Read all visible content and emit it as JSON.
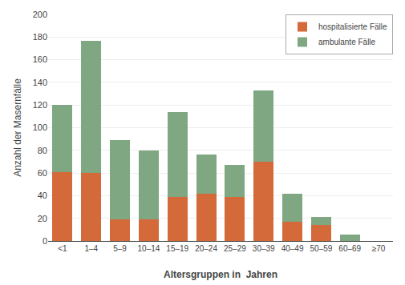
{
  "chart_data": {
    "type": "bar",
    "stacked": true,
    "categories": [
      "<1",
      "1–4",
      "5–9",
      "10–14",
      "15–19",
      "20–24",
      "25–29",
      "30–39",
      "40–49",
      "50–59",
      "60–69",
      "≥70"
    ],
    "series": [
      {
        "name": "hospitalisierte Fälle",
        "color": "#d4693a",
        "values": [
          61,
          60,
          19,
          19,
          39,
          42,
          39,
          70,
          17,
          14,
          0,
          0
        ]
      },
      {
        "name": "ambulante Fälle",
        "color": "#7fa882",
        "values": [
          59,
          117,
          70,
          61,
          75,
          34,
          28,
          63,
          25,
          7,
          6,
          0
        ]
      }
    ],
    "xlabel": "Altersgruppen in  Jahren",
    "ylabel": "Anzahl der Masernfälle",
    "ylim": [
      0,
      200
    ],
    "yticks": [
      0,
      20,
      40,
      60,
      80,
      100,
      120,
      140,
      160,
      180,
      200
    ],
    "grid": true,
    "legend": "upper right"
  }
}
